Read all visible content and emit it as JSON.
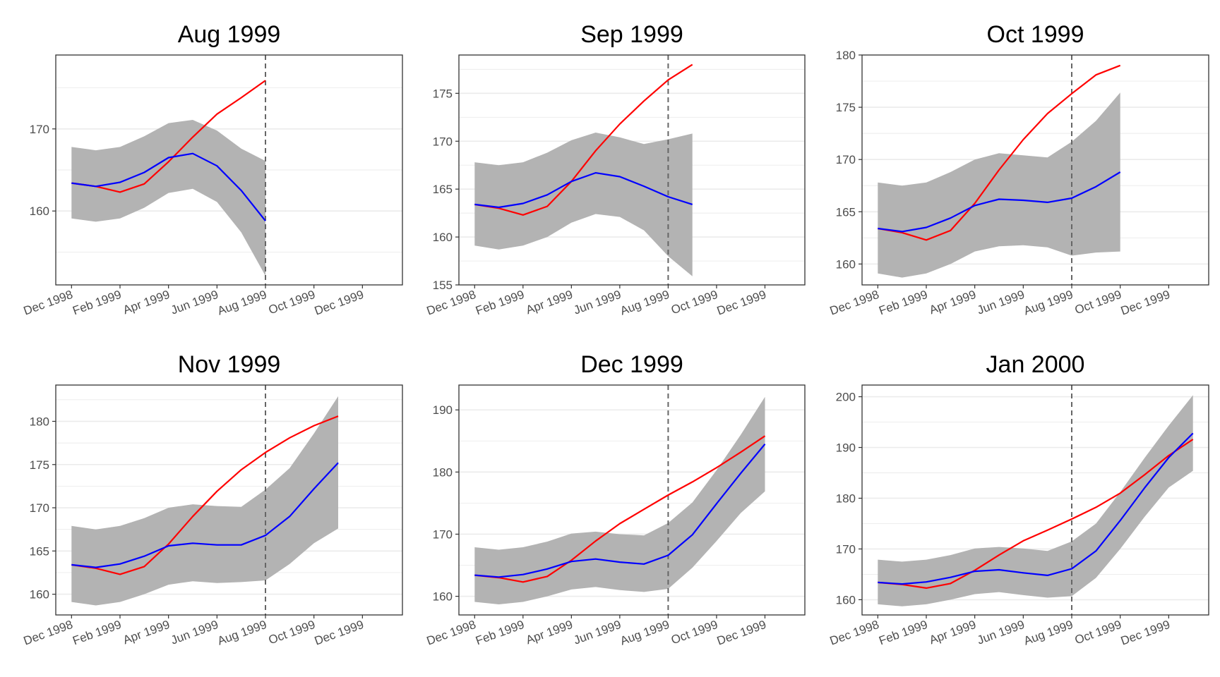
{
  "chart_data": [
    {
      "type": "line",
      "title": "Aug 1999",
      "x_tick_labels": [
        "Dec 1998",
        "Feb 1999",
        "Apr 1999",
        "Jun 1999",
        "Aug 1999",
        "Oct 1999",
        "Dec 1999"
      ],
      "x_axis_dates": [
        "1998-12",
        "1999-12"
      ],
      "y_ticks": [
        160,
        170
      ],
      "ylim": [
        151,
        179
      ],
      "vline": "1999-08",
      "band_color": "#b3b3b3",
      "series": [
        {
          "color": "#ff0000",
          "x": [
            "1998-12",
            "1999-01",
            "1999-02",
            "1999-03",
            "1999-04",
            "1999-05",
            "1999-06",
            "1999-07",
            "1999-08"
          ],
          "values": [
            163.4,
            163.0,
            162.3,
            163.3,
            166.0,
            169.0,
            171.8,
            173.8,
            175.9
          ]
        },
        {
          "color": "#0000ff",
          "x": [
            "1998-12",
            "1999-01",
            "1999-02",
            "1999-03",
            "1999-04",
            "1999-05",
            "1999-06",
            "1999-07",
            "1999-08"
          ],
          "values": [
            163.4,
            163.0,
            163.5,
            164.7,
            166.5,
            167.0,
            165.5,
            162.5,
            158.8
          ]
        }
      ],
      "band": {
        "x": [
          "1998-12",
          "1999-01",
          "1999-02",
          "1999-03",
          "1999-04",
          "1999-05",
          "1999-06",
          "1999-07",
          "1999-08"
        ],
        "lower": [
          159.1,
          158.7,
          159.1,
          160.4,
          162.2,
          162.7,
          161.1,
          157.4,
          152.1
        ],
        "upper": [
          167.8,
          167.4,
          167.8,
          169.1,
          170.7,
          171.1,
          169.8,
          167.6,
          166.1
        ]
      }
    },
    {
      "type": "line",
      "title": "Sep 1999",
      "x_tick_labels": [
        "Dec 1998",
        "Feb 1999",
        "Apr 1999",
        "Jun 1999",
        "Aug 1999",
        "Oct 1999",
        "Dec 1999"
      ],
      "x_axis_dates": [
        "1998-12",
        "1999-12"
      ],
      "y_ticks": [
        155,
        160,
        165,
        170,
        175
      ],
      "ylim": [
        155,
        179
      ],
      "vline": "1999-08",
      "band_color": "#b3b3b3",
      "series": [
        {
          "color": "#ff0000",
          "x": [
            "1998-12",
            "1999-01",
            "1999-02",
            "1999-03",
            "1999-04",
            "1999-05",
            "1999-06",
            "1999-07",
            "1999-08",
            "1999-09"
          ],
          "values": [
            163.4,
            163.0,
            162.3,
            163.2,
            165.8,
            169.0,
            171.8,
            174.2,
            176.4,
            178.0
          ]
        },
        {
          "color": "#0000ff",
          "x": [
            "1998-12",
            "1999-01",
            "1999-02",
            "1999-03",
            "1999-04",
            "1999-05",
            "1999-06",
            "1999-07",
            "1999-08",
            "1999-09"
          ],
          "values": [
            163.4,
            163.1,
            163.5,
            164.4,
            165.8,
            166.7,
            166.3,
            165.3,
            164.2,
            163.4
          ]
        }
      ],
      "band": {
        "x": [
          "1998-12",
          "1999-01",
          "1999-02",
          "1999-03",
          "1999-04",
          "1999-05",
          "1999-06",
          "1999-07",
          "1999-08",
          "1999-09"
        ],
        "lower": [
          159.1,
          158.7,
          159.1,
          160.0,
          161.5,
          162.4,
          162.1,
          160.7,
          158.0,
          155.9
        ],
        "upper": [
          167.8,
          167.5,
          167.8,
          168.8,
          170.1,
          170.9,
          170.4,
          169.7,
          170.2,
          170.8
        ]
      }
    },
    {
      "type": "line",
      "title": "Oct 1999",
      "x_tick_labels": [
        "Dec 1998",
        "Feb 1999",
        "Apr 1999",
        "Jun 1999",
        "Aug 1999",
        "Oct 1999",
        "Dec 1999"
      ],
      "x_axis_dates": [
        "1998-12",
        "1999-12"
      ],
      "y_ticks": [
        160,
        165,
        170,
        175,
        180
      ],
      "ylim": [
        158,
        180
      ],
      "vline": "1999-08",
      "band_color": "#b3b3b3",
      "series": [
        {
          "color": "#ff0000",
          "x": [
            "1998-12",
            "1999-01",
            "1999-02",
            "1999-03",
            "1999-04",
            "1999-05",
            "1999-06",
            "1999-07",
            "1999-08",
            "1999-09",
            "1999-10"
          ],
          "values": [
            163.4,
            163.0,
            162.3,
            163.2,
            165.8,
            169.0,
            171.9,
            174.4,
            176.3,
            178.1,
            179.0
          ]
        },
        {
          "color": "#0000ff",
          "x": [
            "1998-12",
            "1999-01",
            "1999-02",
            "1999-03",
            "1999-04",
            "1999-05",
            "1999-06",
            "1999-07",
            "1999-08",
            "1999-09",
            "1999-10"
          ],
          "values": [
            163.4,
            163.1,
            163.5,
            164.4,
            165.6,
            166.2,
            166.1,
            165.9,
            166.3,
            167.4,
            168.8
          ]
        }
      ],
      "band": {
        "x": [
          "1998-12",
          "1999-01",
          "1999-02",
          "1999-03",
          "1999-04",
          "1999-05",
          "1999-06",
          "1999-07",
          "1999-08",
          "1999-09",
          "1999-10"
        ],
        "lower": [
          159.1,
          158.7,
          159.1,
          160.0,
          161.2,
          161.7,
          161.8,
          161.6,
          160.8,
          161.1,
          161.2
        ],
        "upper": [
          167.8,
          167.5,
          167.8,
          168.8,
          170.0,
          170.6,
          170.4,
          170.2,
          171.7,
          173.7,
          176.4
        ]
      }
    },
    {
      "type": "line",
      "title": "Nov 1999",
      "x_tick_labels": [
        "Dec 1998",
        "Feb 1999",
        "Apr 1999",
        "Jun 1999",
        "Aug 1999",
        "Oct 1999",
        "Dec 1999"
      ],
      "x_axis_dates": [
        "1998-12",
        "1999-12"
      ],
      "y_ticks": [
        160,
        165,
        170,
        175,
        180
      ],
      "ylim": [
        157.6,
        184.2
      ],
      "vline": "1999-08",
      "band_color": "#b3b3b3",
      "series": [
        {
          "color": "#ff0000",
          "x": [
            "1998-12",
            "1999-01",
            "1999-02",
            "1999-03",
            "1999-04",
            "1999-05",
            "1999-06",
            "1999-07",
            "1999-08",
            "1999-09",
            "1999-10",
            "1999-11"
          ],
          "values": [
            163.4,
            163.0,
            162.3,
            163.2,
            165.8,
            169.0,
            171.9,
            174.4,
            176.4,
            178.1,
            179.5,
            180.6
          ]
        },
        {
          "color": "#0000ff",
          "x": [
            "1998-12",
            "1999-01",
            "1999-02",
            "1999-03",
            "1999-04",
            "1999-05",
            "1999-06",
            "1999-07",
            "1999-08",
            "1999-09",
            "1999-10",
            "1999-11"
          ],
          "values": [
            163.4,
            163.1,
            163.5,
            164.4,
            165.6,
            165.9,
            165.7,
            165.7,
            166.8,
            169.0,
            172.2,
            175.2
          ]
        }
      ],
      "band": {
        "x": [
          "1998-12",
          "1999-01",
          "1999-02",
          "1999-03",
          "1999-04",
          "1999-05",
          "1999-06",
          "1999-07",
          "1999-08",
          "1999-09",
          "1999-10",
          "1999-11"
        ],
        "lower": [
          159.1,
          158.7,
          159.1,
          160.0,
          161.1,
          161.5,
          161.3,
          161.4,
          161.6,
          163.5,
          165.9,
          167.6
        ],
        "upper": [
          167.9,
          167.5,
          167.9,
          168.8,
          170.0,
          170.4,
          170.2,
          170.1,
          172.1,
          174.6,
          178.6,
          182.9
        ]
      }
    },
    {
      "type": "line",
      "title": "Dec 1999",
      "x_tick_labels": [
        "Dec 1998",
        "Feb 1999",
        "Apr 1999",
        "Jun 1999",
        "Aug 1999",
        "Oct 1999",
        "Dec 1999"
      ],
      "x_axis_dates": [
        "1998-12",
        "1999-12"
      ],
      "y_ticks": [
        160,
        170,
        180,
        190
      ],
      "ylim": [
        157,
        194
      ],
      "vline": "1999-08",
      "band_color": "#b3b3b3",
      "series": [
        {
          "color": "#ff0000",
          "x": [
            "1998-12",
            "1999-01",
            "1999-02",
            "1999-03",
            "1999-04",
            "1999-05",
            "1999-06",
            "1999-07",
            "1999-08",
            "1999-09",
            "1999-10",
            "1999-11",
            "1999-12"
          ],
          "values": [
            163.4,
            163.0,
            162.3,
            163.2,
            165.8,
            168.9,
            171.7,
            174.0,
            176.3,
            178.4,
            180.7,
            183.2,
            185.8
          ]
        },
        {
          "color": "#0000ff",
          "x": [
            "1998-12",
            "1999-01",
            "1999-02",
            "1999-03",
            "1999-04",
            "1999-05",
            "1999-06",
            "1999-07",
            "1999-08",
            "1999-09",
            "1999-10",
            "1999-11",
            "1999-12"
          ],
          "values": [
            163.4,
            163.1,
            163.5,
            164.4,
            165.6,
            166.0,
            165.5,
            165.2,
            166.6,
            169.9,
            174.9,
            179.8,
            184.5
          ]
        }
      ],
      "band": {
        "x": [
          "1998-12",
          "1999-01",
          "1999-02",
          "1999-03",
          "1999-04",
          "1999-05",
          "1999-06",
          "1999-07",
          "1999-08",
          "1999-09",
          "1999-10",
          "1999-11",
          "1999-12"
        ],
        "lower": [
          159.1,
          158.7,
          159.1,
          160.0,
          161.1,
          161.5,
          161.0,
          160.7,
          161.2,
          164.6,
          168.9,
          173.4,
          176.9
        ],
        "upper": [
          167.9,
          167.5,
          167.9,
          168.8,
          170.1,
          170.4,
          170.0,
          169.8,
          171.8,
          175.1,
          180.3,
          186.0,
          192.1
        ]
      }
    },
    {
      "type": "line",
      "title": "Jan 2000",
      "x_tick_labels": [
        "Dec 1998",
        "Feb 1999",
        "Apr 1999",
        "Jun 1999",
        "Aug 1999",
        "Oct 1999",
        "Dec 1999"
      ],
      "x_axis_dates": [
        "1998-12",
        "1999-12"
      ],
      "y_ticks": [
        160,
        170,
        180,
        190,
        200
      ],
      "ylim": [
        157,
        202.3
      ],
      "vline": "1999-08",
      "band_color": "#b3b3b3",
      "series": [
        {
          "color": "#ff0000",
          "x": [
            "1998-12",
            "1999-01",
            "1999-02",
            "1999-03",
            "1999-04",
            "1999-05",
            "1999-06",
            "1999-07",
            "1999-08",
            "1999-09",
            "1999-10",
            "1999-11",
            "1999-12",
            "2000-01"
          ],
          "values": [
            163.4,
            163.0,
            162.3,
            163.2,
            165.8,
            168.8,
            171.6,
            173.7,
            175.9,
            178.2,
            181.0,
            184.6,
            188.4,
            191.6
          ]
        },
        {
          "color": "#0000ff",
          "x": [
            "1998-12",
            "1999-01",
            "1999-02",
            "1999-03",
            "1999-04",
            "1999-05",
            "1999-06",
            "1999-07",
            "1999-08",
            "1999-09",
            "1999-10",
            "1999-11",
            "1999-12",
            "2000-01"
          ],
          "values": [
            163.4,
            163.1,
            163.5,
            164.4,
            165.6,
            165.9,
            165.3,
            164.8,
            166.1,
            169.6,
            175.6,
            182.0,
            188.0,
            192.8
          ]
        }
      ],
      "band": {
        "x": [
          "1998-12",
          "1999-01",
          "1999-02",
          "1999-03",
          "1999-04",
          "1999-05",
          "1999-06",
          "1999-07",
          "1999-08",
          "1999-09",
          "1999-10",
          "1999-11",
          "1999-12",
          "2000-01"
        ],
        "lower": [
          159.1,
          158.7,
          159.1,
          160.0,
          161.1,
          161.5,
          160.9,
          160.4,
          160.7,
          164.3,
          170.0,
          176.3,
          182.1,
          185.4
        ],
        "upper": [
          167.9,
          167.5,
          167.9,
          168.8,
          170.1,
          170.4,
          170.1,
          169.6,
          171.5,
          175.0,
          181.2,
          187.9,
          194.3,
          200.3
        ]
      }
    }
  ]
}
